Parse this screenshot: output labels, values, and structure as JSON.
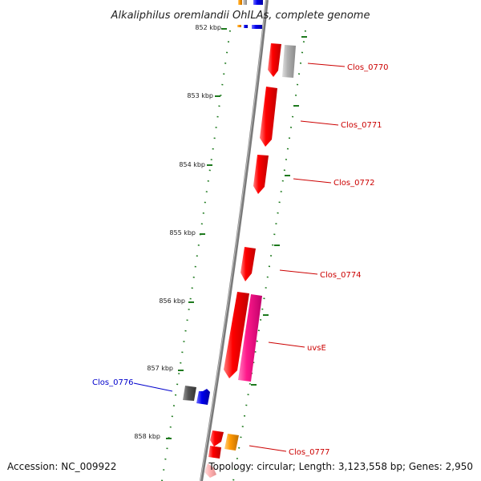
{
  "title": "Alkaliphilus oremlandii OhILAs, complete genome",
  "footer": {
    "accession": "Accession: NC_009922",
    "topology": "Topology: circular; Length: 3,123,558 bp; Genes: 2,950"
  },
  "ticks": [
    {
      "label": "852 kbp"
    },
    {
      "label": "853 kbp"
    },
    {
      "label": "854 kbp"
    },
    {
      "label": "855 kbp"
    },
    {
      "label": "856 kbp"
    },
    {
      "label": "857 kbp"
    },
    {
      "label": "858 kbp"
    }
  ],
  "gene_labels": [
    {
      "text": "Clos_0770",
      "color": "#cc0000"
    },
    {
      "text": "Clos_0771",
      "color": "#cc0000"
    },
    {
      "text": "Clos_0772",
      "color": "#cc0000"
    },
    {
      "text": "Clos_0774",
      "color": "#cc0000"
    },
    {
      "text": "uvsE",
      "color": "#cc0000"
    },
    {
      "text": "Clos_0776",
      "color": "#0000cc"
    },
    {
      "text": "Clos_0777",
      "color": "#cc0000"
    }
  ],
  "colors": {
    "backbone": "#7a7a7a",
    "tick_mark": "#1e7a1e",
    "cds_forward": "#ff0000",
    "cds_pink": "#ff1a8c",
    "cds_gray": "#b0b0b0",
    "cds_dark": "#555555",
    "cds_blue": "#0000ee",
    "cds_orange": "#ff9900",
    "cds_light": "#ffb0b0"
  }
}
